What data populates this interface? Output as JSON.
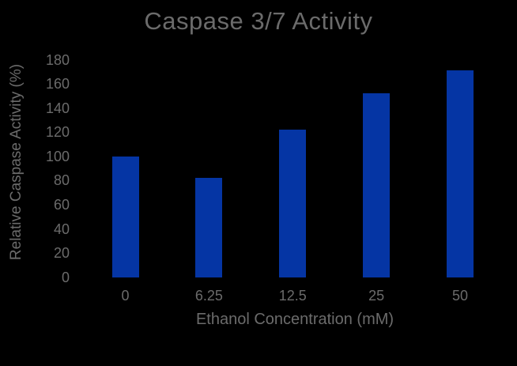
{
  "window": {
    "background_color": "#000000",
    "text_color": "#6B6B6B"
  },
  "chart_data": {
    "type": "bar",
    "title": "Caspase 3/7 Activity",
    "categories": [
      "0",
      "6.25",
      "12.5",
      "25",
      "50"
    ],
    "values": [
      100,
      82,
      122,
      152,
      171
    ],
    "xlabel": "Ethanol Concentration (mM)",
    "ylabel": "Relative Caspase Activity (%)",
    "ylim": [
      0,
      180
    ],
    "ytick_step": 20,
    "yticks": [
      0,
      20,
      40,
      60,
      80,
      100,
      120,
      140,
      160,
      180
    ],
    "bar_color": "#0535A4",
    "grid": false,
    "legend": false,
    "plot_background": "#000000"
  }
}
